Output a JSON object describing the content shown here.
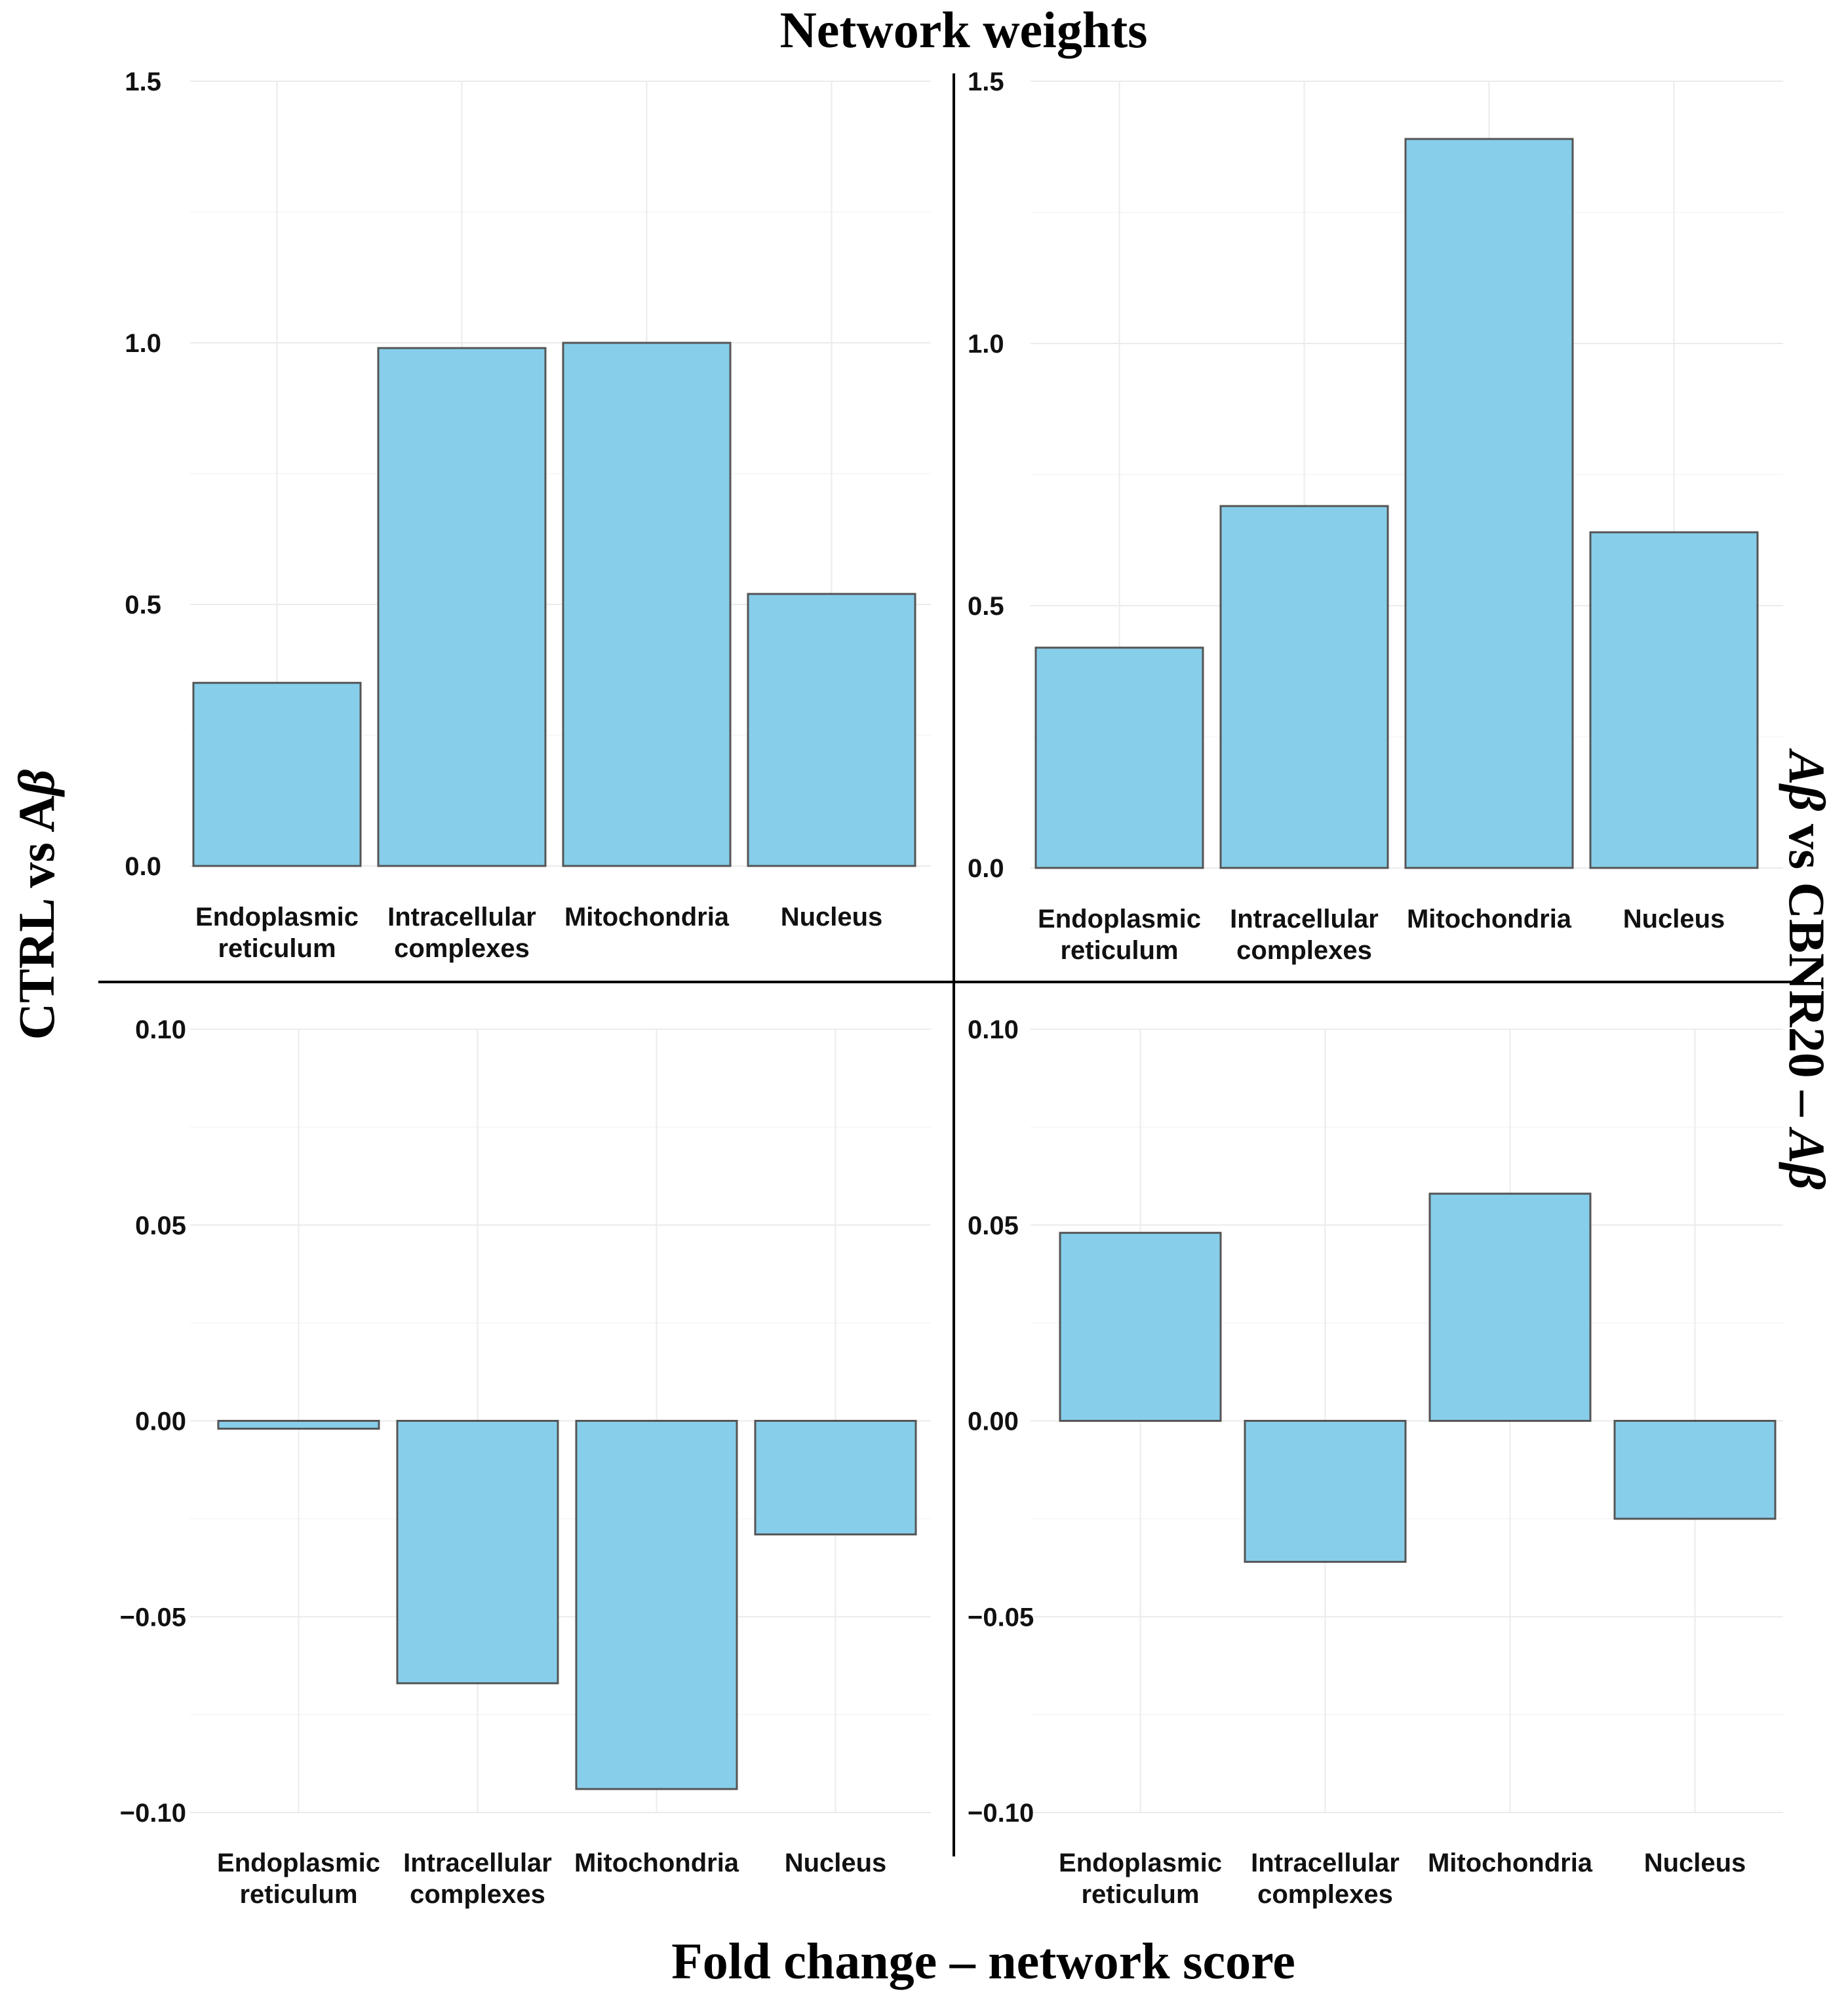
{
  "chart_data": {
    "title": "Network weights",
    "xlabel": "Fold change – network score",
    "row_labels": {
      "left": {
        "text": "CTRL vs A",
        "italic": "β"
      },
      "right": {
        "italic_prefix": "Aβ",
        "text": " vs CBNR20 – ",
        "italic_suffix": "Aβ"
      }
    },
    "panels": [
      {
        "id": "network-weights-ctrl-vs-abeta",
        "type": "bar",
        "categories": [
          [
            "Endoplasmic",
            "reticulum"
          ],
          [
            "Intracellular",
            "complexes"
          ],
          [
            "Mitochondria"
          ],
          [
            "Nucleus"
          ]
        ],
        "values": [
          0.35,
          0.99,
          1.0,
          0.52
        ],
        "ylim": [
          0,
          1.5
        ],
        "yticks": [
          "0.0",
          "0.5",
          "1.0",
          "1.5"
        ],
        "ytick_values": [
          0,
          0.5,
          1.0,
          1.5
        ]
      },
      {
        "id": "network-weights-abeta-vs-cbnr20",
        "type": "bar",
        "categories": [
          [
            "Endoplasmic",
            "reticulum"
          ],
          [
            "Intracellular",
            "complexes"
          ],
          [
            "Mitochondria"
          ],
          [
            "Nucleus"
          ]
        ],
        "values": [
          0.42,
          0.69,
          1.39,
          0.64
        ],
        "ylim": [
          0,
          1.5
        ],
        "yticks": [
          "0.0",
          "0.5",
          "1.0",
          "1.5"
        ],
        "ytick_values": [
          0,
          0.5,
          1.0,
          1.5
        ]
      },
      {
        "id": "fold-change-ctrl-vs-abeta",
        "type": "bar",
        "categories": [
          [
            "Endoplasmic",
            "reticulum"
          ],
          [
            "Intracellular",
            "complexes"
          ],
          [
            "Mitochondria"
          ],
          [
            "Nucleus"
          ]
        ],
        "values": [
          -0.002,
          -0.067,
          -0.094,
          -0.029
        ],
        "ylim": [
          -0.1,
          0.1
        ],
        "yticks": [
          "0.10",
          "0.05",
          "0.00",
          "−0.05",
          "−0.10"
        ],
        "ytick_values": [
          0.1,
          0.05,
          0,
          -0.05,
          -0.1
        ]
      },
      {
        "id": "fold-change-abeta-vs-cbnr20",
        "type": "bar",
        "categories": [
          [
            "Endoplasmic",
            "reticulum"
          ],
          [
            "Intracellular",
            "complexes"
          ],
          [
            "Mitochondria"
          ],
          [
            "Nucleus"
          ]
        ],
        "values": [
          0.048,
          -0.036,
          0.058,
          -0.025
        ],
        "ylim": [
          -0.1,
          0.1
        ],
        "yticks": [
          "0.10",
          "0.05",
          "0.00",
          "−0.05",
          "−0.10"
        ],
        "ytick_values": [
          0.1,
          0.05,
          0,
          -0.05,
          -0.1
        ]
      }
    ],
    "colors": {
      "bar_fill": "#87ceeb",
      "bar_stroke": "#555555",
      "grid": "#ebebeb",
      "divider": "#000000"
    }
  }
}
